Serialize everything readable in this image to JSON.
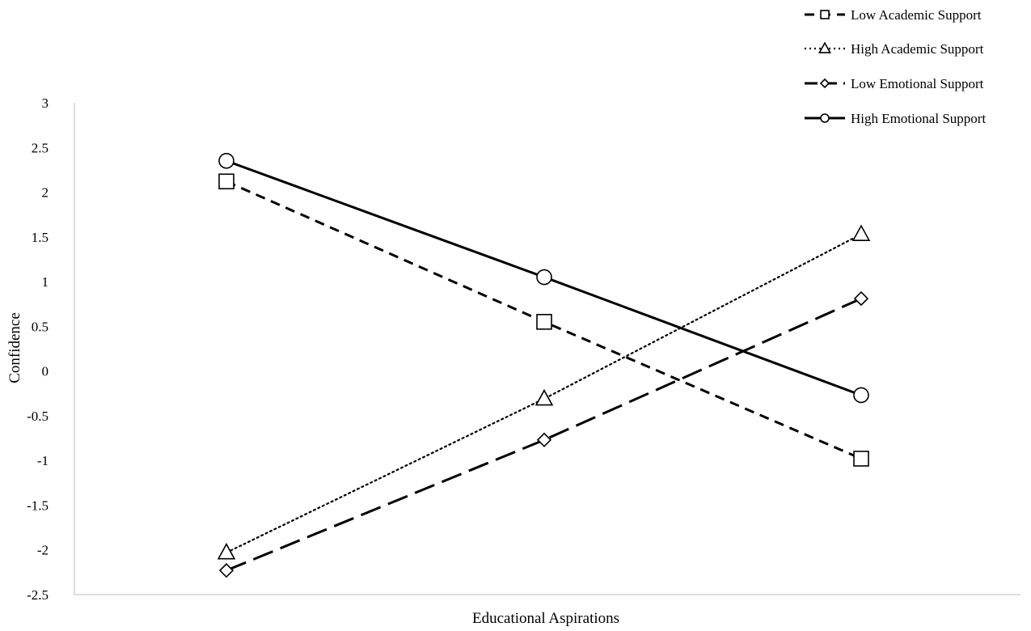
{
  "chart_data": {
    "type": "line",
    "title": "",
    "xlabel": "Educational Aspirations",
    "ylabel": "Confidence",
    "x": [
      1,
      2,
      3
    ],
    "ylim": [
      -2.5,
      3
    ],
    "yticks": [
      "3",
      "2.5",
      "2",
      "1.5",
      "1",
      "0.5",
      "0",
      "-0.5",
      "-1",
      "-1.5",
      "-2",
      "-2.5"
    ],
    "yticks_values": [
      3,
      2.5,
      2,
      1.5,
      1,
      0.5,
      0,
      -0.5,
      -1,
      -1.5,
      -2,
      -2.5
    ],
    "grid": false,
    "legend_position": "top-right",
    "series": [
      {
        "name": "Low Academic Support",
        "values": [
          2.12,
          0.55,
          -0.98
        ],
        "marker": "square",
        "dash": "short-dash"
      },
      {
        "name": "High Academic Support",
        "values": [
          -2.03,
          -0.31,
          1.53
        ],
        "marker": "triangle",
        "dash": "dotted"
      },
      {
        "name": "Low Emotional Support",
        "values": [
          -2.23,
          -0.77,
          0.81
        ],
        "marker": "diamond",
        "dash": "long-dash"
      },
      {
        "name": "High Emotional Support",
        "values": [
          2.35,
          1.05,
          -0.27
        ],
        "marker": "circle",
        "dash": "solid"
      }
    ],
    "line_color": "#000000"
  }
}
